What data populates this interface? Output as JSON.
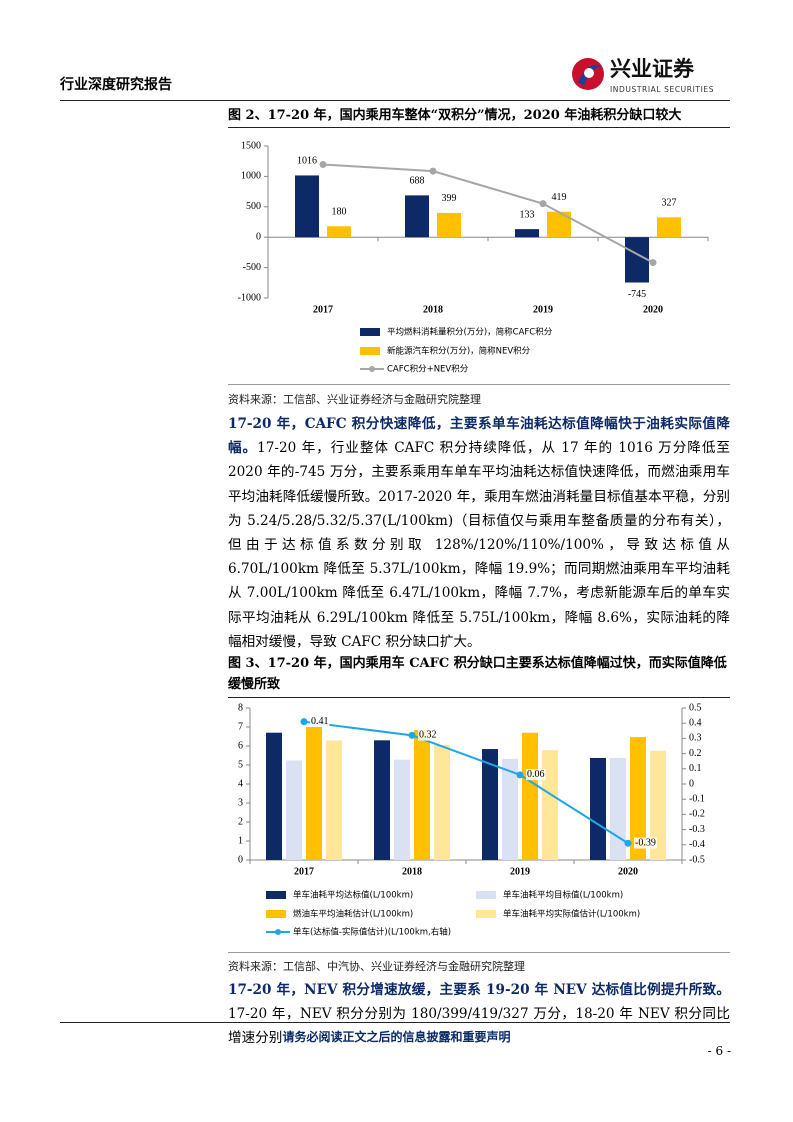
{
  "header": {
    "title": "行业深度研究报告",
    "logo_cn": "兴业证券",
    "logo_en": "INDUSTRIAL SECURITIES"
  },
  "figure1": {
    "caption": "图 2、17-20 年，国内乘用车整体“双积分”情况，2020 年油耗积分缺口较大",
    "source": "资料来源：工信部、兴业证券经济与金融研究院整理"
  },
  "paragraph1": {
    "lead": "17-20 年，CAFC 积分快速降低，主要系单车油耗达标值降幅快于油耗实际值降幅。",
    "body": "17-20 年，行业整体 CAFC 积分持续降低，从 17 年的 1016 万分降低至 2020 年的-745 万分，主要系乘用车单车平均油耗达标值快速降低，而燃油乘用车平均油耗降低缓慢所致。2017-2020 年，乘用车燃油消耗量目标值基本平稳，分别为 5.24/5.28/5.32/5.37(L/100km)（目标值仅与乘用车整备质量的分布有关），但由于达标值系数分别取 128%/120%/110%/100%，导致达标值从 6.70L/100km 降低至 5.37L/100km，降幅 19.9%；而同期燃油乘用车平均油耗从 7.00L/100km 降低至 6.47L/100km，降幅 7.7%，考虑新能源车后的单车实际平均油耗从 6.29L/100km 降低至 5.75L/100km，降幅 8.6%，实际油耗的降幅相对缓慢，导致 CAFC 积分缺口扩大。"
  },
  "figure2": {
    "caption": "图 3、17-20 年，国内乘用车 CAFC 积分缺口主要系达标值降幅过快，而实际值降低缓慢所致",
    "source": "资料来源：工信部、中汽协、兴业证券经济与金融研究院整理"
  },
  "paragraph2": {
    "lead": "17-20 年，NEV 积分增速放缓，主要系 19-20 年 NEV 达标值比例提升所致。",
    "body": "17-20 年，NEV 积分分别为 180/399/419/327 万分，18-20 年 NEV 积分同比增速分别"
  },
  "footer": {
    "disclaimer": "请务必阅读正文之后的信息披露和重要声明",
    "page": "- 6 -"
  },
  "chart_data": [
    {
      "type": "bar",
      "categories": [
        "2017",
        "2018",
        "2019",
        "2020"
      ],
      "series": [
        {
          "name": "平均燃料消耗量积分(万分)，简称CAFC积分",
          "color": "#0d2a66",
          "values": [
            1016,
            688,
            133,
            -745
          ],
          "data_labels": true
        },
        {
          "name": "新能源汽车积分(万分)，简称NEV积分",
          "color": "#ffc000",
          "values": [
            180,
            399,
            419,
            327
          ],
          "data_labels": true
        },
        {
          "name": "CAFC积分+NEV积分",
          "color": "#a6a6a6",
          "type": "line",
          "values": [
            1196,
            1087,
            552,
            -418
          ],
          "data_labels": false
        }
      ],
      "ylim": [
        -1000,
        1500
      ],
      "yticks": [
        -1000,
        -500,
        0,
        500,
        1000,
        1500
      ],
      "grid": false
    },
    {
      "type": "bar",
      "categories": [
        "2017",
        "2018",
        "2019",
        "2020"
      ],
      "series": [
        {
          "name": "单车油耗平均达标值(L/100km)",
          "color": "#0d2a66",
          "values": [
            6.7,
            6.3,
            5.84,
            5.37
          ],
          "data_labels": false
        },
        {
          "name": "单车油耗平均目标值(L/100km)",
          "color": "#d9e1f2",
          "values": [
            5.24,
            5.28,
            5.32,
            5.37
          ],
          "data_labels": false
        },
        {
          "name": "燃油车平均油耗估计(L/100km)",
          "color": "#ffc000",
          "values": [
            7.0,
            6.84,
            6.7,
            6.47
          ],
          "data_labels": false
        },
        {
          "name": "单车油耗平均实际值估计(L/100km)",
          "color": "#ffe699",
          "values": [
            6.29,
            6.05,
            5.78,
            5.75
          ],
          "data_labels": false
        },
        {
          "name": "单车(达标值-实际值估计)(L/100km,右轴)",
          "color": "#1ea6e6",
          "type": "line",
          "axis": "y2",
          "values": [
            0.41,
            0.32,
            0.06,
            -0.39
          ],
          "data_labels": true
        }
      ],
      "ylim": [
        0,
        8
      ],
      "yticks": [
        0,
        1,
        2,
        3,
        4,
        5,
        6,
        7,
        8
      ],
      "y2lim": [
        -0.5,
        0.5
      ],
      "y2ticks": [
        -0.5,
        -0.4,
        -0.3,
        -0.2,
        -0.1,
        0,
        0.1,
        0.2,
        0.3,
        0.4,
        0.5
      ],
      "grid": false
    }
  ]
}
